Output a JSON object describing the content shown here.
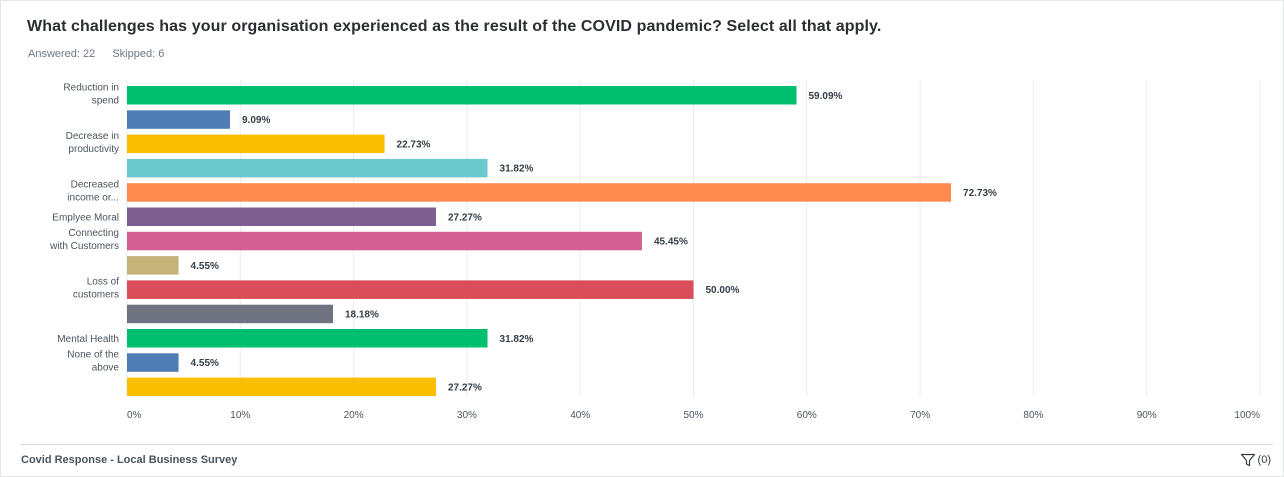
{
  "question": {
    "title": "What challenges has your organisation experienced as the result of the COVID pandemic? Select all that apply.",
    "answered_label": "Answered: 22",
    "skipped_label": "Skipped: 6"
  },
  "footer": {
    "survey_name": "Covid Response - Local Business Survey",
    "filter_count": "(0)",
    "filter_icon": "filter-icon"
  },
  "chart_data": {
    "type": "bar",
    "orientation": "horizontal",
    "title": "What challenges has your organisation experienced as the result of the COVID pandemic? Select all that apply.",
    "xlabel": "",
    "ylabel": "",
    "xlim": [
      0,
      100
    ],
    "x_ticks": [
      "0%",
      "10%",
      "20%",
      "30%",
      "40%",
      "50%",
      "60%",
      "70%",
      "80%",
      "90%",
      "100%"
    ],
    "grid": true,
    "legend": "none",
    "categories": [
      [
        "Reduction in",
        "spend"
      ],
      [],
      [
        "Decrease in",
        "productivity"
      ],
      [],
      [
        "Decreased",
        "income or..."
      ],
      [
        "Emplyee Moral"
      ],
      [
        "Connecting",
        "with Customers"
      ],
      [],
      [
        "Loss of",
        "customers"
      ],
      [],
      [
        "Mental Health"
      ],
      [
        "None of the",
        "above"
      ],
      []
    ],
    "values": [
      59.09,
      9.09,
      22.73,
      31.82,
      72.73,
      27.27,
      45.45,
      4.55,
      50.0,
      18.18,
      31.82,
      4.55,
      27.27
    ],
    "value_labels": [
      "59.09%",
      "9.09%",
      "22.73%",
      "31.82%",
      "72.73%",
      "27.27%",
      "45.45%",
      "4.55%",
      "50.00%",
      "18.18%",
      "31.82%",
      "4.55%",
      "27.27%"
    ],
    "colors": [
      "#00bf6f",
      "#507cb6",
      "#f9be00",
      "#6bc8cd",
      "#ff8b4f",
      "#7d5e90",
      "#d25f90",
      "#c5b37a",
      "#da4d59",
      "#6f7380",
      "#00bf6f",
      "#507cb6",
      "#f9be00"
    ]
  }
}
